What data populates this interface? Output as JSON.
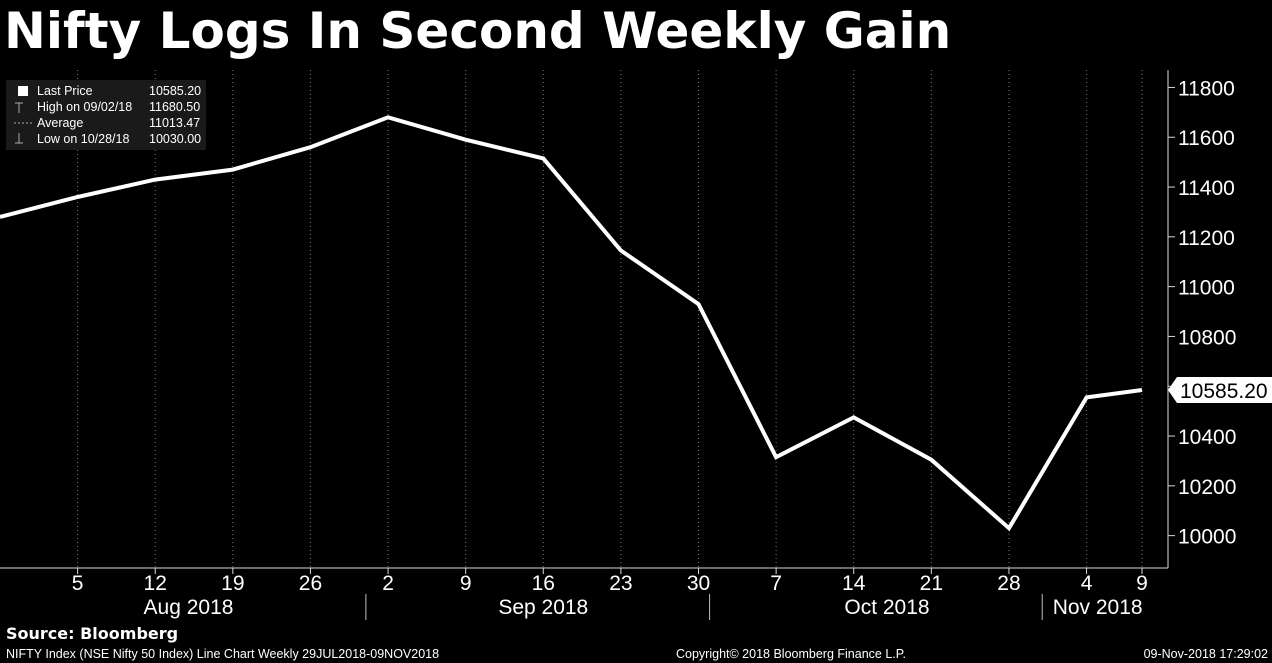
{
  "title": "Nifty Logs In Second Weekly Gain",
  "legend": [
    {
      "name": "Last Price",
      "value": "10585.20"
    },
    {
      "name": "High on 09/02/18",
      "value": "11680.50"
    },
    {
      "name": "Average",
      "value": "11013.47"
    },
    {
      "name": "Low on 10/28/18",
      "value": "10030.00"
    }
  ],
  "last_price_tag": "10585.20",
  "footer": {
    "source": "Source: Bloomberg",
    "left": "NIFTY Index (NSE Nifty 50 Index) Line Chart  Weekly 29JUL2018-09NOV2018",
    "middle": "Copyright© 2018 Bloomberg Finance L.P.",
    "right": "09-Nov-2018 17:29:02"
  },
  "colors": {
    "background": "#000000",
    "line": "#ffffff",
    "legend_bg": "#1a1a1a"
  },
  "chart_data": {
    "type": "line",
    "title": "Nifty Logs In Second Weekly Gain",
    "xlabel": "",
    "ylabel": "",
    "ylim": [
      9870,
      11870
    ],
    "y_ticks": [
      10000,
      10200,
      10400,
      10600,
      10800,
      11000,
      11200,
      11400,
      11600,
      11800
    ],
    "y_axis_side": "right",
    "x_ticks": [
      {
        "date": "2018-08-05",
        "label": "5"
      },
      {
        "date": "2018-08-12",
        "label": "12"
      },
      {
        "date": "2018-08-19",
        "label": "19"
      },
      {
        "date": "2018-08-26",
        "label": "26"
      },
      {
        "date": "2018-09-02",
        "label": "2"
      },
      {
        "date": "2018-09-09",
        "label": "9"
      },
      {
        "date": "2018-09-16",
        "label": "16"
      },
      {
        "date": "2018-09-23",
        "label": "23"
      },
      {
        "date": "2018-09-30",
        "label": "30"
      },
      {
        "date": "2018-10-07",
        "label": "7"
      },
      {
        "date": "2018-10-14",
        "label": "14"
      },
      {
        "date": "2018-10-21",
        "label": "21"
      },
      {
        "date": "2018-10-28",
        "label": "28"
      },
      {
        "date": "2018-11-04",
        "label": "4"
      },
      {
        "date": "2018-11-09",
        "label": "9"
      }
    ],
    "months": [
      {
        "label": "Aug 2018",
        "center": "2018-08-15"
      },
      {
        "label": "Sep 2018",
        "center": "2018-09-16"
      },
      {
        "label": "Oct 2018",
        "center": "2018-10-17"
      },
      {
        "label": "Nov 2018",
        "center": "2018-11-05"
      }
    ],
    "month_separators": [
      "2018-08-31",
      "2018-10-01",
      "2018-10-31"
    ],
    "x_range": [
      "2018-07-29",
      "2018-11-09"
    ],
    "series": [
      {
        "name": "Last Price",
        "x": [
          "2018-07-29",
          "2018-08-05",
          "2018-08-12",
          "2018-08-19",
          "2018-08-26",
          "2018-09-02",
          "2018-09-09",
          "2018-09-16",
          "2018-09-23",
          "2018-09-30",
          "2018-10-07",
          "2018-10-14",
          "2018-10-21",
          "2018-10-28",
          "2018-11-04",
          "2018-11-09"
        ],
        "values": [
          11280,
          11360,
          11430,
          11470,
          11560,
          11680,
          11590,
          11515,
          11145,
          10930,
          10315,
          10475,
          10305,
          10030,
          10555,
          10585
        ]
      }
    ],
    "grid": true,
    "legend_position": "top-left"
  }
}
